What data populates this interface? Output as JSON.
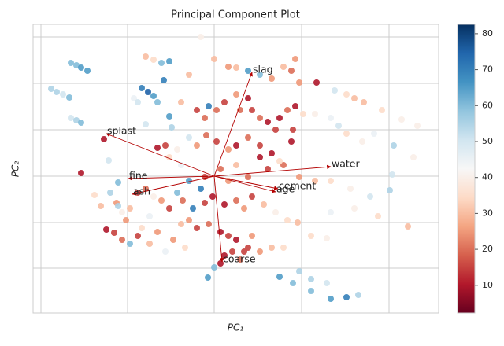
{
  "chart_data": {
    "type": "biplot",
    "title": "Principal Component Plot",
    "xlabel": "PC₁",
    "ylabel": "PC₂",
    "xlim": [
      42,
      557
    ],
    "ylim": [
      42,
      409
    ],
    "xticks": [
      52,
      162,
      272,
      383,
      494
    ],
    "yticks": [
      99,
      157,
      216,
      275,
      334,
      393
    ],
    "grid": true,
    "x": [
      90,
      97,
      103,
      111,
      65,
      72,
      80,
      88,
      90,
      97,
      103,
      185,
      195,
      205,
      215,
      208,
      180,
      188,
      195,
      170,
      175,
      200,
      185,
      215,
      218,
      240,
      255,
      272,
      290,
      300,
      315,
      330,
      345,
      360,
      375,
      370,
      380,
      402,
      425,
      440,
      450,
      462,
      485,
      510,
      530,
      230,
      250,
      260,
      265,
      275,
      285,
      300,
      305,
      315,
      320,
      330,
      340,
      350,
      355,
      365,
      375,
      385,
      400,
      420,
      430,
      440,
      460,
      475,
      500,
      525,
      498,
      495,
      470,
      445,
      420,
      400,
      380,
      360,
      345,
      330,
      315,
      300,
      290,
      275,
      262,
      250,
      240,
      225,
      210,
      200,
      215,
      230,
      240,
      255,
      260,
      280,
      290,
      300,
      315,
      330,
      340,
      355,
      370,
      372,
      120,
      128,
      140,
      148,
      155,
      165,
      175,
      185,
      195,
      205,
      215,
      225,
      232,
      245,
      260,
      270,
      285,
      300,
      310,
      320,
      335,
      350,
      365,
      378,
      395,
      415,
      103,
      132,
      138,
      150,
      160,
      135,
      145,
      155,
      165,
      175,
      190,
      200,
      210,
      220,
      235,
      250,
      265,
      280,
      290,
      300,
      310,
      320,
      285,
      295,
      305,
      315,
      280,
      330,
      345,
      360,
      380,
      395,
      415,
      440,
      455,
      420,
      395,
      372,
      355,
      264,
      272,
      240,
      230,
      150,
      190,
      180,
      420,
      450,
      480,
      518
    ],
    "y": [
      360,
      357,
      354,
      350,
      327,
      323,
      320,
      316,
      290,
      287,
      284,
      368,
      364,
      360,
      362,
      338,
      328,
      323,
      318,
      315,
      310,
      310,
      282,
      292,
      278,
      345,
      393,
      365,
      355,
      354,
      350,
      345,
      340,
      355,
      365,
      350,
      335,
      335,
      325,
      320,
      315,
      310,
      300,
      288,
      280,
      310,
      300,
      290,
      305,
      300,
      310,
      320,
      300,
      315,
      300,
      290,
      285,
      275,
      290,
      300,
      305,
      295,
      295,
      290,
      280,
      270,
      260,
      270,
      255,
      240,
      218,
      198,
      190,
      200,
      210,
      210,
      215,
      230,
      245,
      255,
      265,
      255,
      250,
      260,
      268,
      255,
      265,
      250,
      255,
      252,
      240,
      230,
      210,
      200,
      215,
      225,
      210,
      230,
      215,
      240,
      225,
      235,
      260,
      275,
      192,
      178,
      195,
      182,
      170,
      175,
      195,
      200,
      190,
      185,
      175,
      195,
      185,
      175,
      182,
      190,
      180,
      185,
      175,
      190,
      180,
      170,
      160,
      157,
      140,
      137,
      220,
      263,
      236,
      208,
      160,
      148,
      144,
      135,
      130,
      140,
      130,
      145,
      120,
      135,
      125,
      150,
      155,
      145,
      140,
      135,
      120,
      140,
      115,
      120,
      110,
      125,
      105,
      120,
      125,
      125,
      95,
      85,
      80,
      62,
      65,
      60,
      70,
      80,
      88,
      87,
      100,
      160,
      155,
      178,
      165,
      150,
      170,
      175,
      165,
      152
    ],
    "c": [
      60,
      60,
      65,
      65,
      55,
      55,
      50,
      60,
      50,
      55,
      60,
      30,
      35,
      60,
      65,
      70,
      70,
      75,
      65,
      45,
      50,
      60,
      50,
      65,
      55,
      30,
      40,
      30,
      25,
      30,
      65,
      60,
      25,
      30,
      25,
      20,
      25,
      10,
      50,
      35,
      30,
      30,
      35,
      40,
      40,
      30,
      15,
      20,
      70,
      20,
      15,
      25,
      20,
      10,
      15,
      20,
      10,
      15,
      10,
      20,
      10,
      35,
      40,
      45,
      50,
      35,
      40,
      45,
      55,
      40,
      50,
      55,
      50,
      40,
      35,
      30,
      25,
      20,
      10,
      15,
      20,
      10,
      25,
      15,
      20,
      25,
      50,
      40,
      15,
      10,
      35,
      45,
      65,
      70,
      15,
      20,
      25,
      30,
      20,
      10,
      15,
      35,
      10,
      15,
      35,
      30,
      55,
      25,
      40,
      30,
      15,
      20,
      40,
      25,
      15,
      60,
      20,
      70,
      15,
      10,
      10,
      20,
      25,
      15,
      30,
      40,
      35,
      30,
      35,
      40,
      10,
      10,
      50,
      60,
      25,
      10,
      15,
      20,
      60,
      15,
      30,
      25,
      45,
      25,
      35,
      15,
      20,
      10,
      15,
      10,
      15,
      25,
      10,
      15,
      20,
      15,
      10,
      25,
      30,
      35,
      55,
      55,
      50,
      70,
      55,
      65,
      60,
      60,
      65,
      65,
      60,
      25,
      30,
      55,
      45,
      35,
      45,
      40,
      35,
      30
    ],
    "clim": [
      2.3,
      82.6
    ],
    "cticks": [
      10,
      20,
      30,
      40,
      50,
      60,
      70,
      80
    ],
    "cmap": [
      "#67001f",
      "#b2182b",
      "#d6604d",
      "#f4a582",
      "#fddbc7",
      "#f7f7f7",
      "#d1e5f0",
      "#92c5de",
      "#4393c3",
      "#2166ac",
      "#053061"
    ],
    "origin": [
      272,
      216
    ],
    "feature_color": "#b30000",
    "features": [
      {
        "name": "slag",
        "x": 320,
        "y": 348
      },
      {
        "name": "splast",
        "x": 135,
        "y": 270
      },
      {
        "name": "water",
        "x": 420,
        "y": 228
      },
      {
        "name": "fine",
        "x": 163,
        "y": 213
      },
      {
        "name": "ash",
        "x": 168,
        "y": 193
      },
      {
        "name": "cement",
        "x": 353,
        "y": 200
      },
      {
        "name": "age",
        "x": 350,
        "y": 196
      },
      {
        "name": "coarse",
        "x": 282,
        "y": 107
      }
    ]
  }
}
